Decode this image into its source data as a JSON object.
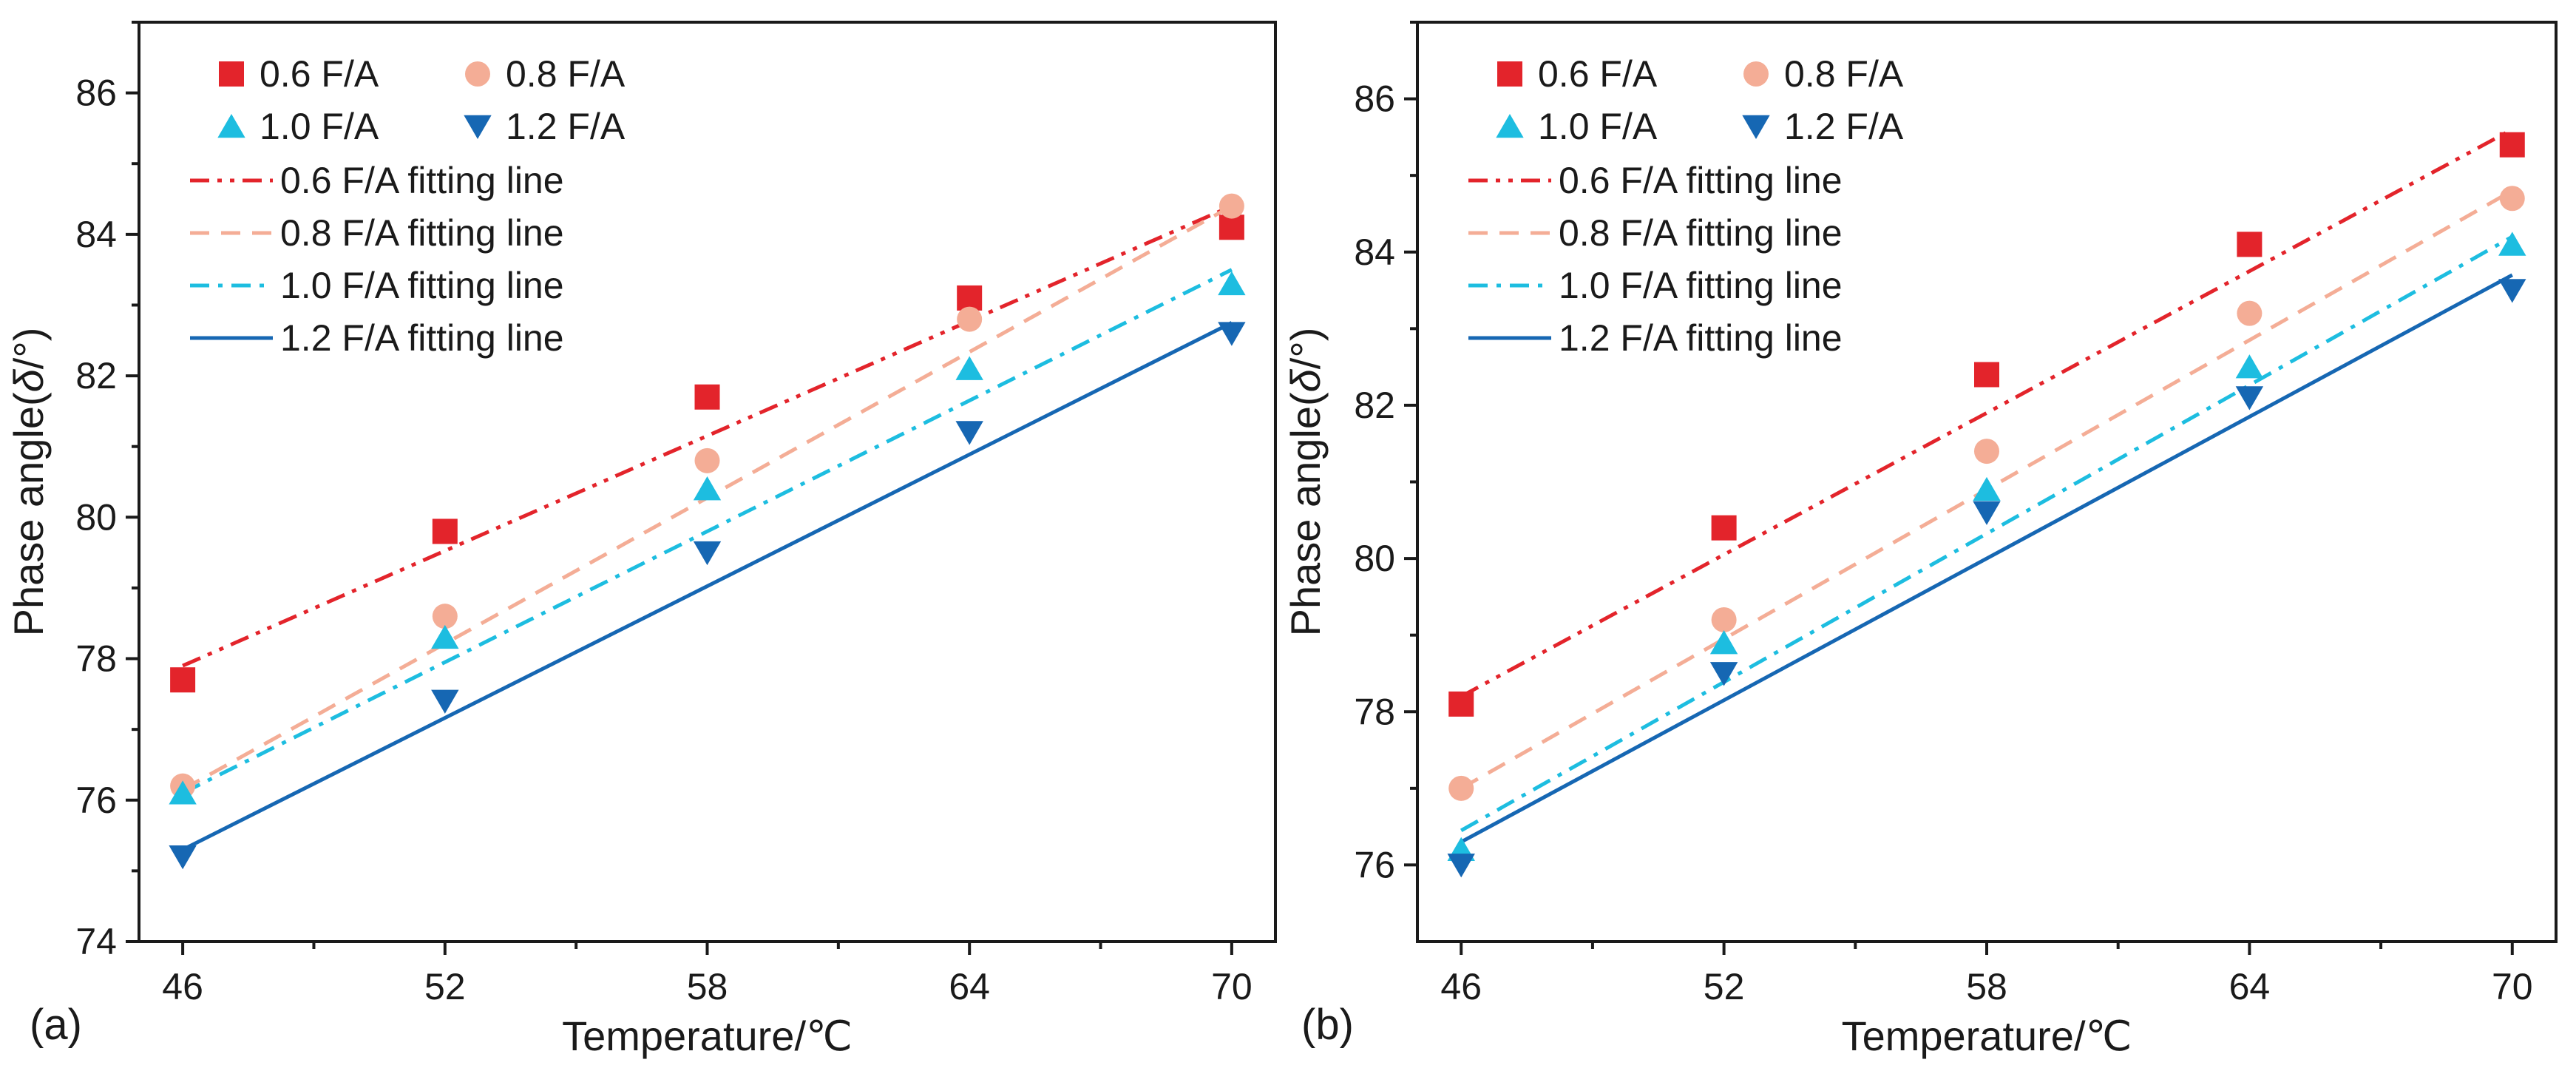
{
  "chart_data": [
    {
      "panel_label": "(a)",
      "type": "scatter",
      "xlabel": "Temperature/℃",
      "ylabel_prefix": "Phase angle(",
      "ylabel_symbol": "δ",
      "ylabel_suffix": "/°)",
      "xlim": [
        45,
        71
      ],
      "ylim": [
        74,
        87
      ],
      "xticks": [
        46,
        52,
        58,
        64,
        70
      ],
      "yticks": [
        74,
        76,
        78,
        80,
        82,
        84,
        86
      ],
      "x": [
        46,
        52,
        58,
        64,
        70
      ],
      "series": [
        {
          "name": "0.6 F/A",
          "marker": "square",
          "color": "#e3242b",
          "values": [
            77.7,
            79.8,
            81.7,
            83.1,
            84.1
          ],
          "fit": [
            77.9,
            84.4
          ],
          "fit_name": "0.6 F/A fitting line",
          "dash": "dashdotdot"
        },
        {
          "name": "0.8 F/A",
          "marker": "circle",
          "color": "#f4ad96",
          "values": [
            76.2,
            78.6,
            80.8,
            82.8,
            84.4
          ],
          "fit": [
            76.15,
            84.4
          ],
          "fit_name": "0.8 F/A fitting line",
          "dash": "dash"
        },
        {
          "name": "1.0 F/A",
          "marker": "triangle-up",
          "color": "#1dbde0",
          "values": [
            76.1,
            78.3,
            80.4,
            82.1,
            83.3
          ],
          "fit": [
            76.1,
            83.5
          ],
          "fit_name": "1.0 F/A fitting line",
          "dash": "dashdot"
        },
        {
          "name": "1.2 F/A",
          "marker": "triangle-down",
          "color": "#1667b3",
          "values": [
            75.2,
            77.4,
            79.5,
            81.2,
            82.6
          ],
          "fit": [
            75.3,
            82.75
          ],
          "fit_name": "1.2 F/A fitting line",
          "dash": "solid"
        }
      ]
    },
    {
      "panel_label": "(b)",
      "type": "scatter",
      "xlabel": "Temperature/℃",
      "ylabel_prefix": "Phase angle(",
      "ylabel_symbol": "δ",
      "ylabel_suffix": "/°)",
      "xlim": [
        45,
        71
      ],
      "ylim": [
        75,
        87
      ],
      "xticks": [
        46,
        52,
        58,
        64,
        70
      ],
      "yticks": [
        76,
        78,
        80,
        82,
        84,
        86
      ],
      "x": [
        46,
        52,
        58,
        64,
        70
      ],
      "series": [
        {
          "name": "0.6 F/A",
          "marker": "square",
          "color": "#e3242b",
          "values": [
            78.1,
            80.4,
            82.4,
            84.1,
            85.4
          ],
          "fit": [
            78.2,
            85.6
          ],
          "fit_name": "0.6 F/A fitting line",
          "dash": "dashdotdot"
        },
        {
          "name": "0.8 F/A",
          "marker": "circle",
          "color": "#f4ad96",
          "values": [
            77.0,
            79.2,
            81.4,
            83.2,
            84.7
          ],
          "fit": [
            77.0,
            84.8
          ],
          "fit_name": "0.8 F/A fitting line",
          "dash": "dash"
        },
        {
          "name": "1.0 F/A",
          "marker": "triangle-up",
          "color": "#1dbde0",
          "values": [
            76.2,
            78.9,
            80.9,
            82.5,
            84.1
          ],
          "fit": [
            76.45,
            84.2
          ],
          "fit_name": "1.0 F/A fitting line",
          "dash": "dashdot"
        },
        {
          "name": "1.2 F/A",
          "marker": "triangle-down",
          "color": "#1667b3",
          "values": [
            76.0,
            78.5,
            80.6,
            82.1,
            83.5
          ],
          "fit": [
            76.3,
            83.7
          ],
          "fit_name": "1.2 F/A fitting line",
          "dash": "solid"
        }
      ]
    }
  ]
}
